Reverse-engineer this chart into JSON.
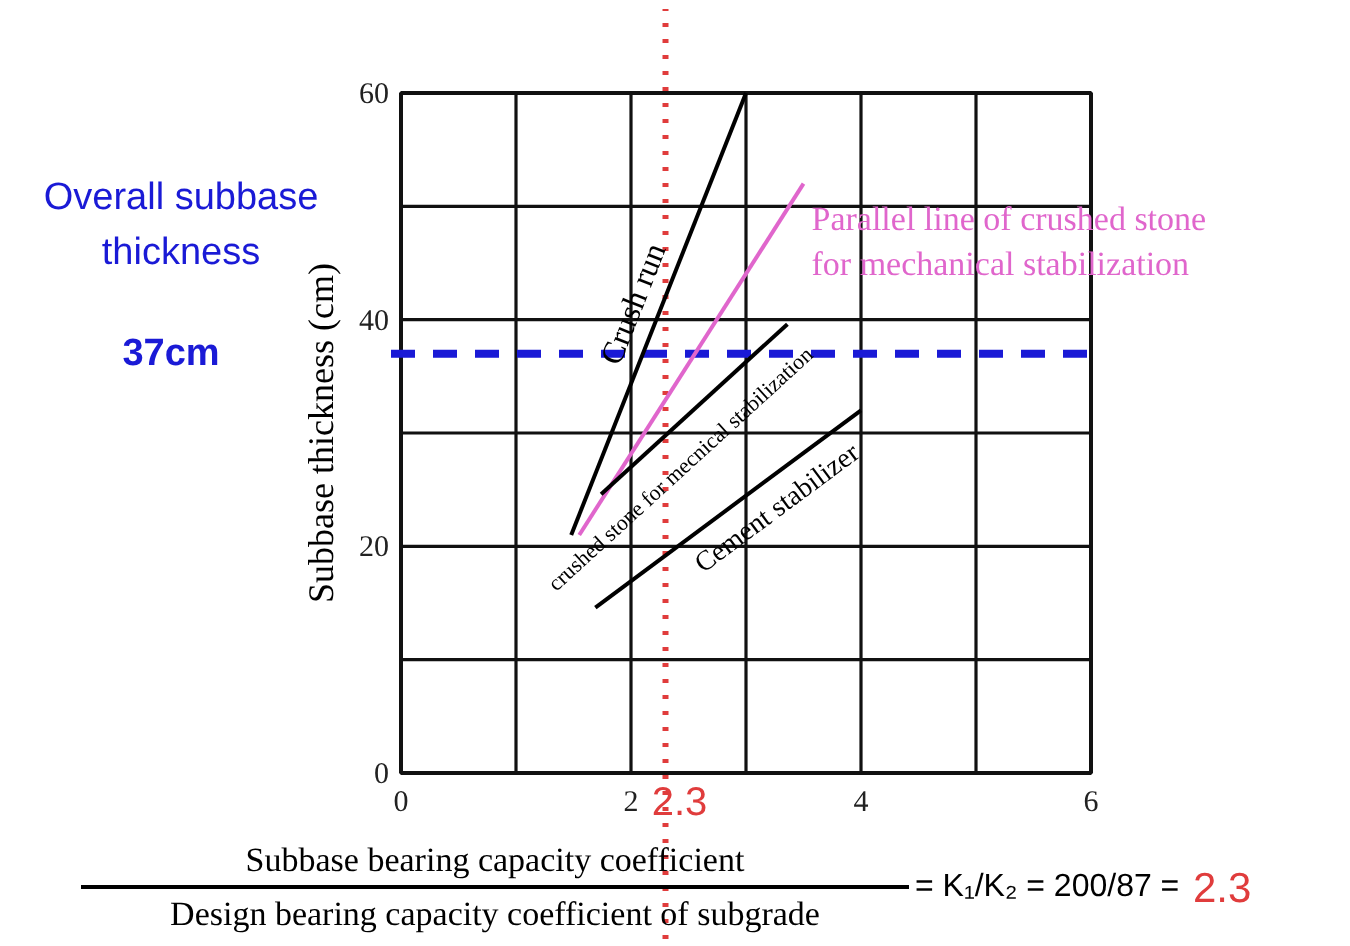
{
  "chart_data": {
    "type": "line",
    "ylabel": "Subbase thickness (cm)",
    "xlim": [
      0,
      6
    ],
    "ylim": [
      0,
      60
    ],
    "xticks": [
      0,
      {
        "value": 1,
        "label": null
      },
      2,
      {
        "value": 3,
        "label": null
      },
      4,
      {
        "value": 5,
        "label": null
      },
      6
    ],
    "yticks": [
      0,
      {
        "value": 10,
        "label": null
      },
      20,
      {
        "value": 30,
        "label": null
      },
      40,
      {
        "value": 50,
        "label": null
      },
      60
    ],
    "grid": true,
    "legend": false,
    "marker": "none",
    "line_style": "solid",
    "series": [
      {
        "name": "Crush run",
        "color": "#000000",
        "x": [
          1.48,
          3.0
        ],
        "values": [
          21,
          60
        ]
      },
      {
        "name": "Parallel line of crushed stone for mechanical stabilization",
        "color": "#e066cc",
        "x": [
          1.55,
          3.5
        ],
        "values": [
          21,
          52
        ]
      },
      {
        "name": "crushed stone for mecnical stabilization",
        "color": "#000000",
        "x": [
          1.74,
          3.36
        ],
        "values": [
          24.6,
          39.6
        ]
      },
      {
        "name": "Cement stabilizer",
        "color": "#000000",
        "x": [
          1.69,
          4.0
        ],
        "values": [
          14.6,
          32
        ]
      }
    ],
    "ref_lines": [
      {
        "axis": "y",
        "value": 37,
        "label": "37cm",
        "color": "#1a1ad6",
        "line_style": "dashed"
      },
      {
        "axis": "x",
        "value": 2.3,
        "label": "2.3",
        "color": "#e03c3c",
        "line_style": "dotted"
      }
    ],
    "annotations": [
      "Overall subbase thickness",
      "Subbase bearing capacity coefficient",
      "Design bearing capacity coefficient of subgrade",
      "= K₁/K₂ = 200/87 ="
    ]
  }
}
